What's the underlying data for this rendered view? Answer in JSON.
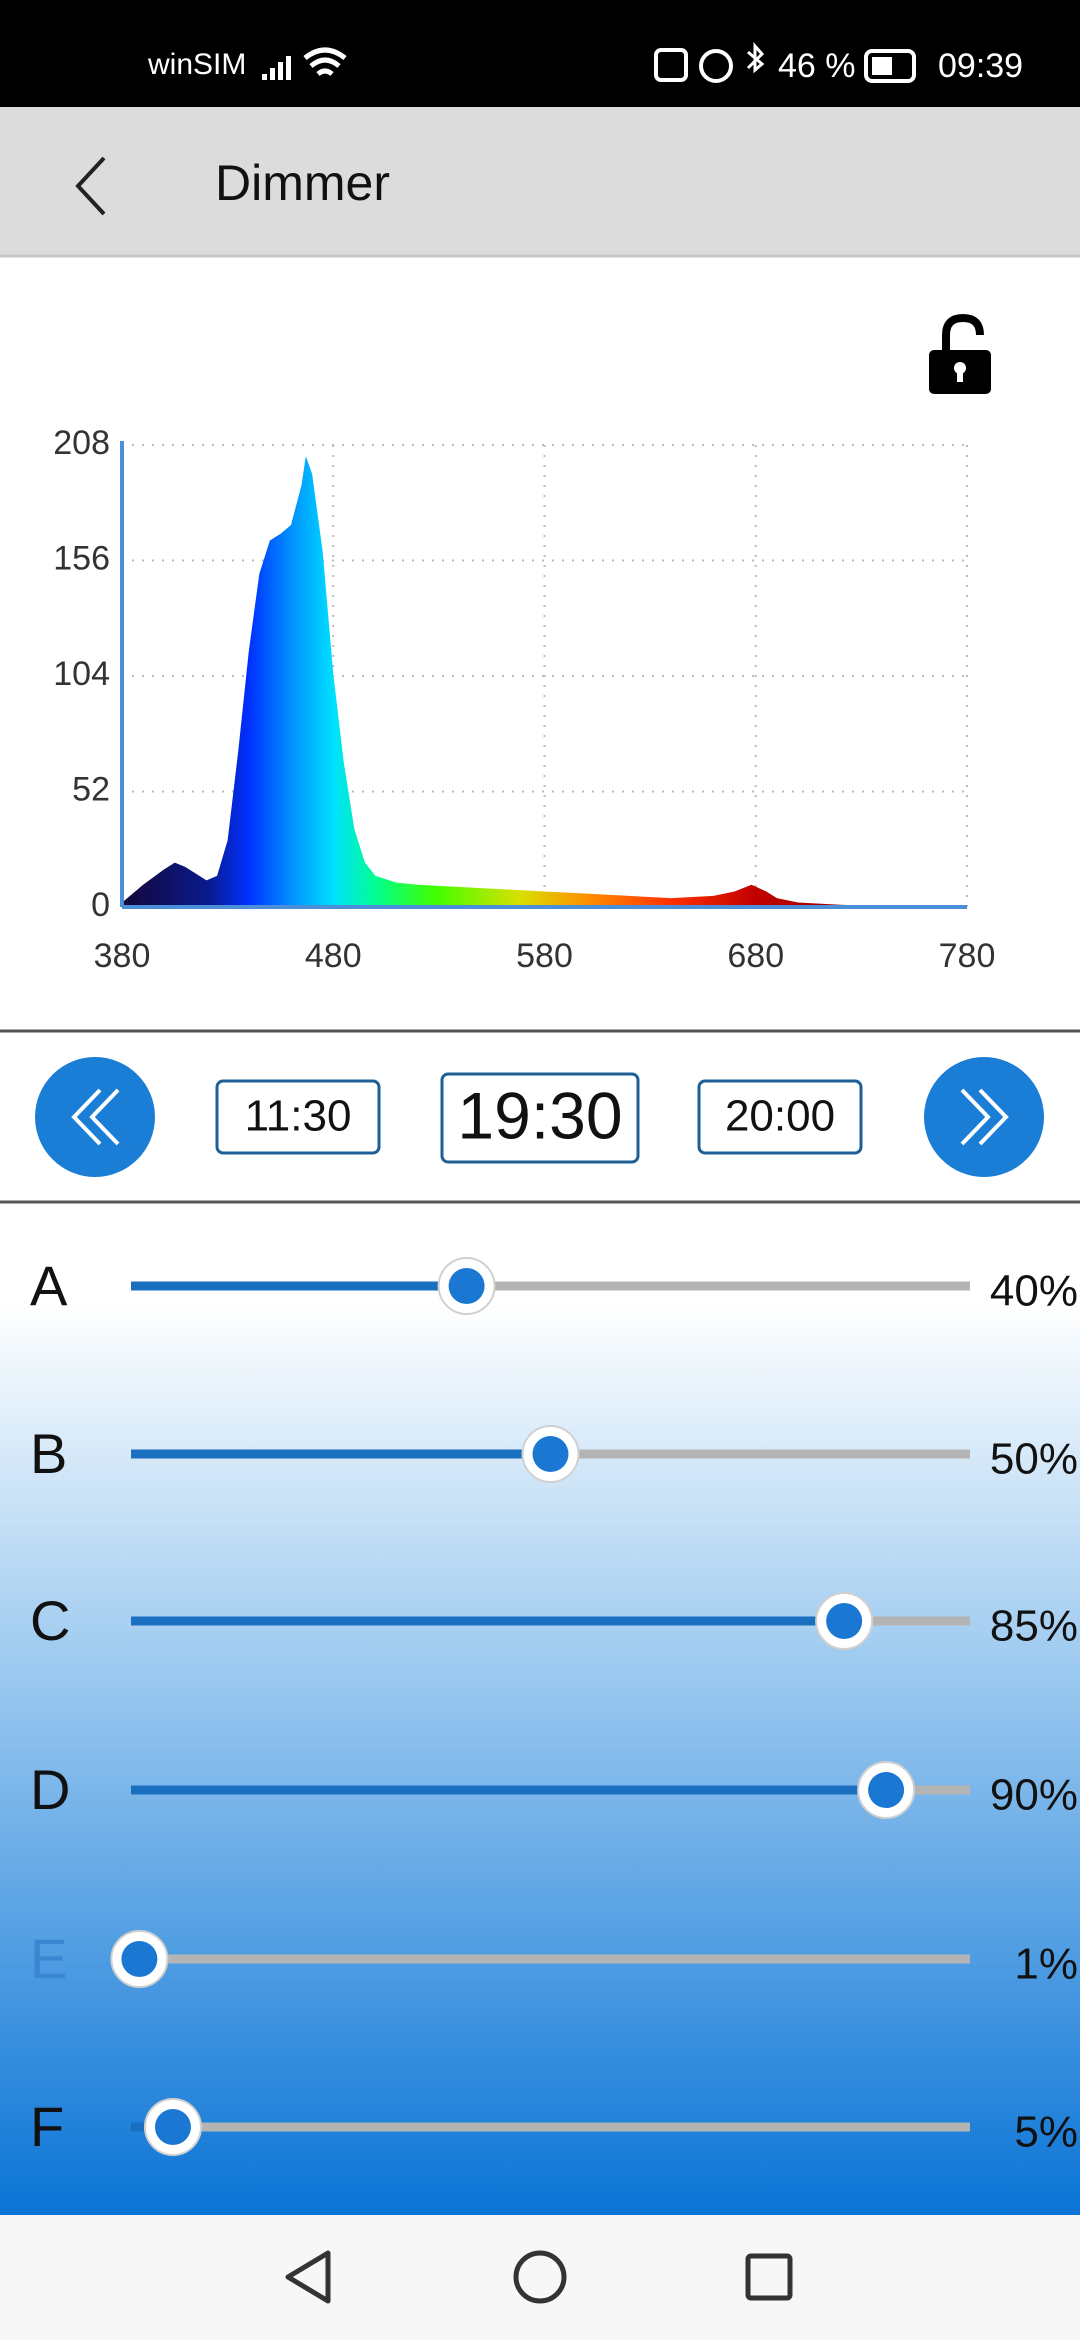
{
  "status_bar": {
    "carrier": "winSIM",
    "battery": "46 %",
    "time": "09:39"
  },
  "header": {
    "title": "Dimmer"
  },
  "chart_data": {
    "type": "area",
    "x": [
      380,
      390,
      400,
      405,
      410,
      420,
      425,
      430,
      435,
      440,
      445,
      450,
      455,
      460,
      465,
      467,
      470,
      475,
      480,
      485,
      490,
      495,
      500,
      510,
      520,
      540,
      560,
      580,
      600,
      620,
      640,
      660,
      670,
      678,
      685,
      690,
      700,
      720,
      750,
      780
    ],
    "values": [
      2,
      10,
      17,
      20,
      18,
      12,
      14,
      30,
      70,
      115,
      150,
      165,
      168,
      172,
      190,
      203,
      195,
      160,
      105,
      65,
      35,
      20,
      14,
      11,
      10,
      9,
      8,
      7,
      6,
      5,
      4,
      5,
      7,
      10,
      7,
      4,
      2,
      1,
      0,
      0
    ],
    "xlim": [
      380,
      780
    ],
    "ylim": [
      0,
      208
    ],
    "xticks": [
      380,
      480,
      580,
      680,
      780
    ],
    "yticks": [
      0,
      52,
      104,
      156,
      208
    ],
    "grid": true
  },
  "time_controls": {
    "previous": "11:30",
    "current": "19:30",
    "next": "20:00"
  },
  "channels": {
    "names": [
      "A",
      "B",
      "C",
      "D",
      "E",
      "F"
    ],
    "values": [
      40,
      50,
      85,
      90,
      1,
      5
    ],
    "value_labels": [
      "40%",
      "50%",
      "85%",
      "90%",
      "1%",
      "5%"
    ]
  }
}
